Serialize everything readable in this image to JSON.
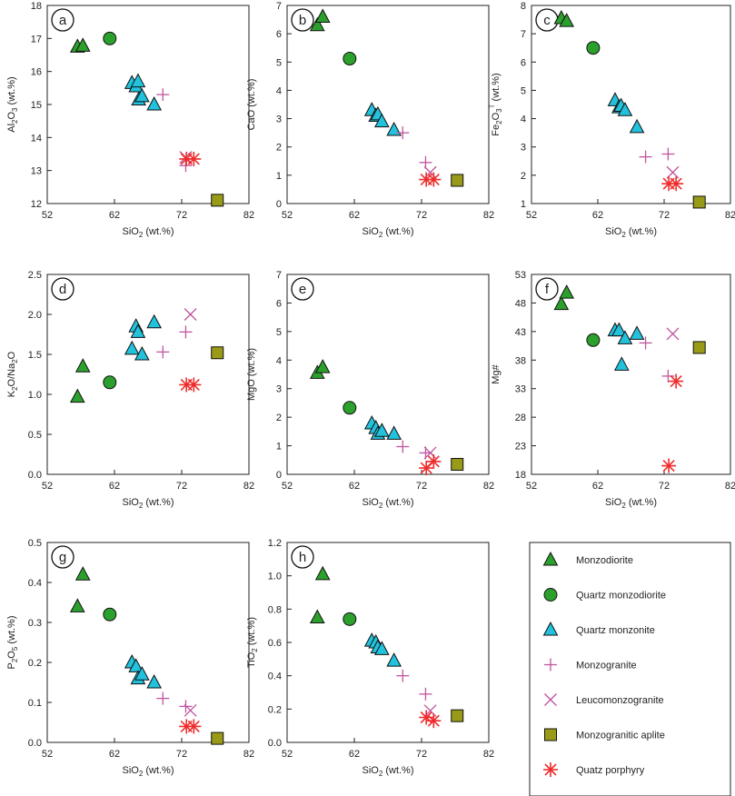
{
  "colors": {
    "monzodiorite": "#2ca02c",
    "qmd": "#2ca02c",
    "qmonz": "#22c1dc",
    "monzogranite": "#c0559f",
    "leuco": "#c0559f",
    "aplite": "#9a9a19",
    "porphyry": "#ef2b2b"
  },
  "legend": [
    {
      "key": "monzodiorite",
      "label": "Monzodiorite"
    },
    {
      "key": "qmd",
      "label": "Quartz monzodiorite"
    },
    {
      "key": "qmonz",
      "label": "Quartz monzonite"
    },
    {
      "key": "monzogranite",
      "label": "Monzogranite"
    },
    {
      "key": "leuco",
      "label": "Leucomonzogranite"
    },
    {
      "key": "aplite",
      "label": "Monzogranitic aplite"
    },
    {
      "key": "porphyry",
      "label": "Quatz porphyry"
    }
  ],
  "chart_data": [
    {
      "type": "scatter",
      "panel": "a",
      "xlabel": "SiO2 (wt.%)",
      "ylabel": "Al2O3 (wt.%)",
      "xlim": [
        52,
        82
      ],
      "ylim": [
        12,
        18
      ],
      "xticks": [
        52,
        62,
        72,
        82
      ],
      "yticks": [
        12,
        13,
        14,
        15,
        16,
        17,
        18
      ],
      "series": [
        {
          "name": "Monzodiorite",
          "points": [
            [
              56.5,
              16.75
            ],
            [
              57.3,
              16.78
            ]
          ]
        },
        {
          "name": "Quartz monzodiorite",
          "points": [
            [
              61.3,
              17.0
            ]
          ]
        },
        {
          "name": "Quartz monzonite",
          "points": [
            [
              64.6,
              15.65
            ],
            [
              65.2,
              15.55
            ],
            [
              65.5,
              15.7
            ],
            [
              65.6,
              15.15
            ],
            [
              66.1,
              15.25
            ],
            [
              67.9,
              15.0
            ]
          ]
        },
        {
          "name": "Monzogranite",
          "points": [
            [
              69.2,
              15.3
            ],
            [
              72.6,
              13.15
            ]
          ]
        },
        {
          "name": "Leucomonzogranite",
          "points": [
            [
              72.6,
              13.4
            ]
          ]
        },
        {
          "name": "Monzogranitic aplite",
          "points": [
            [
              77.3,
              12.1
            ]
          ]
        },
        {
          "name": "Quatz porphyry",
          "points": [
            [
              72.7,
              13.35
            ],
            [
              73.8,
              13.35
            ]
          ]
        }
      ]
    },
    {
      "type": "scatter",
      "panel": "b",
      "xlabel": "SiO2 (wt.%)",
      "ylabel": "CaO (wt.%)",
      "xlim": [
        52,
        82
      ],
      "ylim": [
        0,
        7
      ],
      "xticks": [
        52,
        62,
        72,
        82
      ],
      "yticks": [
        0,
        1,
        2,
        3,
        4,
        5,
        6,
        7
      ],
      "series": [
        {
          "name": "Monzodiorite",
          "points": [
            [
              56.5,
              6.3
            ],
            [
              57.3,
              6.6
            ]
          ]
        },
        {
          "name": "Quartz monzodiorite",
          "points": [
            [
              61.3,
              5.12
            ]
          ]
        },
        {
          "name": "Quartz monzonite",
          "points": [
            [
              64.6,
              3.3
            ],
            [
              65.2,
              3.1
            ],
            [
              65.5,
              3.15
            ],
            [
              66.1,
              2.9
            ],
            [
              67.9,
              2.6
            ]
          ]
        },
        {
          "name": "Monzogranite",
          "points": [
            [
              69.2,
              2.5
            ],
            [
              72.6,
              1.45
            ]
          ]
        },
        {
          "name": "Leucomonzogranite",
          "points": [
            [
              73.3,
              1.1
            ]
          ]
        },
        {
          "name": "Monzogranitic aplite",
          "points": [
            [
              77.3,
              0.82
            ]
          ]
        },
        {
          "name": "Quatz porphyry",
          "points": [
            [
              72.7,
              0.85
            ],
            [
              73.8,
              0.85
            ]
          ]
        }
      ]
    },
    {
      "type": "scatter",
      "panel": "c",
      "xlabel": "SiO2 (wt.%)",
      "ylabel": "Fe2O3T (wt.%)",
      "xlim": [
        52,
        82
      ],
      "ylim": [
        1,
        8
      ],
      "xticks": [
        52,
        62,
        72,
        82
      ],
      "yticks": [
        1,
        2,
        3,
        4,
        5,
        6,
        7,
        8
      ],
      "series": [
        {
          "name": "Monzodiorite",
          "points": [
            [
              56.5,
              7.55
            ],
            [
              57.3,
              7.45
            ]
          ]
        },
        {
          "name": "Quartz monzodiorite",
          "points": [
            [
              61.3,
              6.5
            ]
          ]
        },
        {
          "name": "Quartz monzonite",
          "points": [
            [
              64.6,
              4.65
            ],
            [
              65.2,
              4.4
            ],
            [
              65.5,
              4.45
            ],
            [
              66.1,
              4.3
            ],
            [
              67.9,
              3.7
            ]
          ]
        },
        {
          "name": "Monzogranite",
          "points": [
            [
              69.2,
              2.65
            ],
            [
              72.6,
              2.75
            ]
          ]
        },
        {
          "name": "Leucomonzogranite",
          "points": [
            [
              73.3,
              2.1
            ]
          ]
        },
        {
          "name": "Monzogranitic aplite",
          "points": [
            [
              77.3,
              1.05
            ]
          ]
        },
        {
          "name": "Quatz porphyry",
          "points": [
            [
              72.7,
              1.7
            ],
            [
              73.8,
              1.7
            ]
          ]
        }
      ]
    },
    {
      "type": "scatter",
      "panel": "d",
      "xlabel": "SiO2 (wt.%)",
      "ylabel": "K2O/Na2O",
      "xlim": [
        52,
        82
      ],
      "ylim": [
        0,
        2.5
      ],
      "xticks": [
        52,
        62,
        72,
        82
      ],
      "yticks": [
        0.0,
        0.5,
        1.0,
        1.5,
        2.0,
        2.5
      ],
      "series": [
        {
          "name": "Monzodiorite",
          "points": [
            [
              56.5,
              0.97
            ],
            [
              57.3,
              1.35
            ]
          ]
        },
        {
          "name": "Quartz monzodiorite",
          "points": [
            [
              61.3,
              1.15
            ]
          ]
        },
        {
          "name": "Quartz monzonite",
          "points": [
            [
              64.6,
              1.57
            ],
            [
              65.2,
              1.85
            ],
            [
              65.5,
              1.78
            ],
            [
              66.1,
              1.5
            ],
            [
              67.9,
              1.9
            ]
          ]
        },
        {
          "name": "Monzogranite",
          "points": [
            [
              69.2,
              1.53
            ],
            [
              72.6,
              1.78
            ]
          ]
        },
        {
          "name": "Leucomonzogranite",
          "points": [
            [
              73.3,
              2.0
            ]
          ]
        },
        {
          "name": "Monzogranitic aplite",
          "points": [
            [
              77.3,
              1.52
            ]
          ]
        },
        {
          "name": "Quatz porphyry",
          "points": [
            [
              72.7,
              1.12
            ],
            [
              73.8,
              1.12
            ]
          ]
        }
      ]
    },
    {
      "type": "scatter",
      "panel": "e",
      "xlabel": "SiO2 (wt.%)",
      "ylabel": "MgO (wt.%)",
      "xlim": [
        52,
        82
      ],
      "ylim": [
        0,
        7
      ],
      "xticks": [
        52,
        62,
        72,
        82
      ],
      "yticks": [
        0,
        1,
        2,
        3,
        4,
        5,
        6,
        7
      ],
      "series": [
        {
          "name": "Monzodiorite",
          "points": [
            [
              56.5,
              3.55
            ],
            [
              57.3,
              3.75
            ]
          ]
        },
        {
          "name": "Quartz monzodiorite",
          "points": [
            [
              61.3,
              2.33
            ]
          ]
        },
        {
          "name": "Quartz monzonite",
          "points": [
            [
              64.6,
              1.78
            ],
            [
              65.2,
              1.62
            ],
            [
              65.5,
              1.42
            ],
            [
              66.1,
              1.52
            ],
            [
              67.9,
              1.42
            ]
          ]
        },
        {
          "name": "Monzogranite",
          "points": [
            [
              69.2,
              0.97
            ],
            [
              72.6,
              0.75
            ]
          ]
        },
        {
          "name": "Leucomonzogranite",
          "points": [
            [
              73.3,
              0.75
            ]
          ]
        },
        {
          "name": "Monzogranitic aplite",
          "points": [
            [
              77.3,
              0.35
            ]
          ]
        },
        {
          "name": "Quatz porphyry",
          "points": [
            [
              72.7,
              0.22
            ],
            [
              73.8,
              0.45
            ]
          ]
        }
      ]
    },
    {
      "type": "scatter",
      "panel": "f",
      "xlabel": "SiO2 (wt.%)",
      "ylabel": "Mg#",
      "xlim": [
        52,
        82
      ],
      "ylim": [
        18,
        53
      ],
      "xticks": [
        52,
        62,
        72,
        82
      ],
      "yticks": [
        18,
        23,
        28,
        33,
        38,
        43,
        48,
        53
      ],
      "series": [
        {
          "name": "Monzodiorite",
          "points": [
            [
              56.5,
              47.8
            ],
            [
              57.3,
              49.8
            ]
          ]
        },
        {
          "name": "Quartz monzodiorite",
          "points": [
            [
              61.3,
              41.5
            ]
          ]
        },
        {
          "name": "Quartz monzonite",
          "points": [
            [
              64.6,
              43.2
            ],
            [
              65.2,
              43.2
            ],
            [
              65.6,
              37.2
            ],
            [
              66.1,
              41.8
            ],
            [
              67.9,
              42.6
            ]
          ]
        },
        {
          "name": "Monzogranite",
          "points": [
            [
              69.2,
              41.0
            ],
            [
              72.6,
              35.2
            ]
          ]
        },
        {
          "name": "Leucomonzogranite",
          "points": [
            [
              73.3,
              42.6
            ]
          ]
        },
        {
          "name": "Monzogranitic aplite",
          "points": [
            [
              77.3,
              40.2
            ]
          ]
        },
        {
          "name": "Quatz porphyry",
          "points": [
            [
              72.7,
              19.5
            ],
            [
              73.8,
              34.3
            ]
          ]
        }
      ]
    },
    {
      "type": "scatter",
      "panel": "g",
      "xlabel": "SiO2 (wt.%)",
      "ylabel": "P2O5 (wt.%)",
      "xlim": [
        52,
        82
      ],
      "ylim": [
        0,
        0.5
      ],
      "xticks": [
        52,
        62,
        72,
        82
      ],
      "yticks": [
        0.0,
        0.1,
        0.2,
        0.3,
        0.4,
        0.5
      ],
      "series": [
        {
          "name": "Monzodiorite",
          "points": [
            [
              56.5,
              0.34
            ],
            [
              57.3,
              0.42
            ]
          ]
        },
        {
          "name": "Quartz monzodiorite",
          "points": [
            [
              61.3,
              0.32
            ]
          ]
        },
        {
          "name": "Quartz monzonite",
          "points": [
            [
              64.6,
              0.2
            ],
            [
              65.2,
              0.19
            ],
            [
              65.5,
              0.16
            ],
            [
              66.1,
              0.17
            ],
            [
              67.9,
              0.15
            ]
          ]
        },
        {
          "name": "Monzogranite",
          "points": [
            [
              69.2,
              0.11
            ],
            [
              72.6,
              0.09
            ]
          ]
        },
        {
          "name": "Leucomonzogranite",
          "points": [
            [
              73.3,
              0.08
            ]
          ]
        },
        {
          "name": "Monzogranitic aplite",
          "points": [
            [
              77.3,
              0.01
            ]
          ]
        },
        {
          "name": "Quatz porphyry",
          "points": [
            [
              72.7,
              0.04
            ],
            [
              73.8,
              0.04
            ]
          ]
        }
      ]
    },
    {
      "type": "scatter",
      "panel": "h",
      "xlabel": "SiO2 (wt.%)",
      "ylabel": "TiO2 (wt.%)",
      "xlim": [
        52,
        82
      ],
      "ylim": [
        0,
        1.2
      ],
      "xticks": [
        52,
        62,
        72,
        82
      ],
      "yticks": [
        0.0,
        0.2,
        0.4,
        0.6,
        0.8,
        1.0,
        1.2
      ],
      "series": [
        {
          "name": "Monzodiorite",
          "points": [
            [
              56.5,
              0.75
            ],
            [
              57.3,
              1.01
            ]
          ]
        },
        {
          "name": "Quartz monzodiorite",
          "points": [
            [
              61.3,
              0.74
            ]
          ]
        },
        {
          "name": "Quartz monzonite",
          "points": [
            [
              64.6,
              0.61
            ],
            [
              65.2,
              0.6
            ],
            [
              65.5,
              0.57
            ],
            [
              66.1,
              0.56
            ],
            [
              67.9,
              0.49
            ]
          ]
        },
        {
          "name": "Monzogranite",
          "points": [
            [
              69.2,
              0.4
            ],
            [
              72.6,
              0.29
            ]
          ]
        },
        {
          "name": "Leucomonzogranite",
          "points": [
            [
              73.3,
              0.19
            ]
          ]
        },
        {
          "name": "Monzogranitic aplite",
          "points": [
            [
              77.3,
              0.16
            ]
          ]
        },
        {
          "name": "Quatz porphyry",
          "points": [
            [
              72.7,
              0.15
            ],
            [
              73.8,
              0.13
            ]
          ]
        }
      ]
    }
  ]
}
